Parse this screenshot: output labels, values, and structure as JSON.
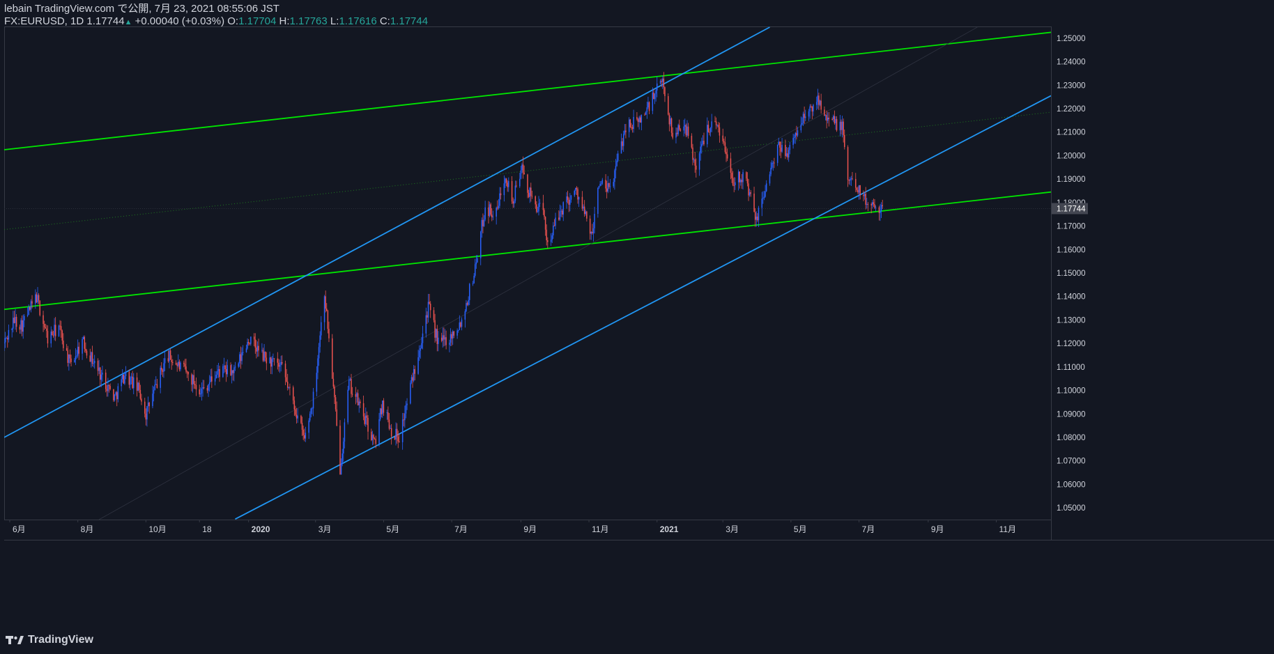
{
  "header": {
    "publish": "lebain TradingView.com で公開, 7月 23, 2021 08:55:06 JST",
    "symbol": "FX:EURUSD, 1D",
    "last": "1.17744",
    "change": "+0.00040 (+0.03%)",
    "o_label": "O:",
    "o": "1.17704",
    "h_label": "H:",
    "h": "1.17763",
    "l_label": "L:",
    "l": "1.17616",
    "c_label": "C:",
    "c": "1.17744"
  },
  "footer": {
    "brand": "TradingView"
  },
  "colors": {
    "background": "#131722",
    "up": "#2962ff",
    "down": "#ef5350",
    "green_line": "#00e600",
    "blue_line": "#2196f3",
    "axis_text": "#d1d4dc",
    "price_tag": "#434651"
  },
  "chart_data": {
    "type": "candlestick",
    "ylim": [
      1.045,
      1.255
    ],
    "y_ticks": [
      "1.05000",
      "1.06000",
      "1.07000",
      "1.08000",
      "1.09000",
      "1.10000",
      "1.11000",
      "1.12000",
      "1.13000",
      "1.14000",
      "1.15000",
      "1.16000",
      "1.17000",
      "1.18000",
      "1.19000",
      "1.20000",
      "1.21000",
      "1.22000",
      "1.23000",
      "1.24000",
      "1.25000"
    ],
    "last_price_label": "1.17744",
    "last_price": 1.17744,
    "x_ticks": [
      {
        "label": "6月",
        "date": "2019-06-01"
      },
      {
        "label": "8月",
        "date": "2019-08-01"
      },
      {
        "label": "10月",
        "date": "2019-10-01"
      },
      {
        "label": "18",
        "date": "2019-11-18"
      },
      {
        "label": "2020",
        "date": "2020-01-01"
      },
      {
        "label": "3月",
        "date": "2020-03-01"
      },
      {
        "label": "5月",
        "date": "2020-05-01"
      },
      {
        "label": "7月",
        "date": "2020-07-01"
      },
      {
        "label": "9月",
        "date": "2020-09-01"
      },
      {
        "label": "11月",
        "date": "2020-11-01"
      },
      {
        "label": "2021",
        "date": "2021-01-01"
      },
      {
        "label": "3月",
        "date": "2021-03-01"
      },
      {
        "label": "5月",
        "date": "2021-05-01"
      },
      {
        "label": "7月",
        "date": "2021-07-01"
      },
      {
        "label": "9月",
        "date": "2021-09-01"
      },
      {
        "label": "11月",
        "date": "2021-11-01"
      }
    ],
    "x_range": [
      "2019-05-27",
      "2021-12-20"
    ],
    "price_path": [
      [
        "2019-05-27",
        1.12
      ],
      [
        "2019-06-05",
        1.13
      ],
      [
        "2019-06-12",
        1.128
      ],
      [
        "2019-06-25",
        1.14
      ],
      [
        "2019-07-05",
        1.122
      ],
      [
        "2019-07-15",
        1.127
      ],
      [
        "2019-07-25",
        1.111
      ],
      [
        "2019-08-05",
        1.121
      ],
      [
        "2019-08-20",
        1.108
      ],
      [
        "2019-09-03",
        1.097
      ],
      [
        "2019-09-12",
        1.107
      ],
      [
        "2019-09-25",
        1.1
      ],
      [
        "2019-10-01",
        1.09
      ],
      [
        "2019-10-20",
        1.115
      ],
      [
        "2019-11-05",
        1.108
      ],
      [
        "2019-11-20",
        1.1
      ],
      [
        "2019-12-05",
        1.108
      ],
      [
        "2019-12-20",
        1.108
      ],
      [
        "2020-01-01",
        1.122
      ],
      [
        "2020-01-15",
        1.114
      ],
      [
        "2020-01-31",
        1.109
      ],
      [
        "2020-02-10",
        1.095
      ],
      [
        "2020-02-20",
        1.079
      ],
      [
        "2020-02-28",
        1.097
      ],
      [
        "2020-03-09",
        1.142
      ],
      [
        "2020-03-15",
        1.112
      ],
      [
        "2020-03-23",
        1.067
      ],
      [
        "2020-03-31",
        1.103
      ],
      [
        "2020-04-10",
        1.093
      ],
      [
        "2020-04-23",
        1.077
      ],
      [
        "2020-04-30",
        1.095
      ],
      [
        "2020-05-08",
        1.083
      ],
      [
        "2020-05-15",
        1.08
      ],
      [
        "2020-05-29",
        1.11
      ],
      [
        "2020-06-10",
        1.136
      ],
      [
        "2020-06-19",
        1.12
      ],
      [
        "2020-06-30",
        1.123
      ],
      [
        "2020-07-10",
        1.13
      ],
      [
        "2020-07-21",
        1.15
      ],
      [
        "2020-07-31",
        1.178
      ],
      [
        "2020-08-10",
        1.175
      ],
      [
        "2020-08-18",
        1.193
      ],
      [
        "2020-08-25",
        1.18
      ],
      [
        "2020-09-01",
        1.195
      ],
      [
        "2020-09-10",
        1.182
      ],
      [
        "2020-09-21",
        1.175
      ],
      [
        "2020-09-25",
        1.163
      ],
      [
        "2020-10-10",
        1.18
      ],
      [
        "2020-10-21",
        1.185
      ],
      [
        "2020-11-04",
        1.165
      ],
      [
        "2020-11-09",
        1.188
      ],
      [
        "2020-11-20",
        1.185
      ],
      [
        "2020-12-04",
        1.213
      ],
      [
        "2020-12-15",
        1.214
      ],
      [
        "2020-12-23",
        1.22
      ],
      [
        "2021-01-06",
        1.232
      ],
      [
        "2021-01-15",
        1.208
      ],
      [
        "2021-01-25",
        1.215
      ],
      [
        "2021-02-05",
        1.195
      ],
      [
        "2021-02-15",
        1.213
      ],
      [
        "2021-02-25",
        1.213
      ],
      [
        "2021-03-10",
        1.19
      ],
      [
        "2021-03-20",
        1.192
      ],
      [
        "2021-03-31",
        1.172
      ],
      [
        "2021-04-10",
        1.19
      ],
      [
        "2021-04-20",
        1.203
      ],
      [
        "2021-04-30",
        1.202
      ],
      [
        "2021-05-10",
        1.215
      ],
      [
        "2021-05-20",
        1.22
      ],
      [
        "2021-05-25",
        1.225
      ],
      [
        "2021-06-05",
        1.215
      ],
      [
        "2021-06-16",
        1.212
      ],
      [
        "2021-06-21",
        1.19
      ],
      [
        "2021-06-30",
        1.187
      ],
      [
        "2021-07-07",
        1.18
      ],
      [
        "2021-07-15",
        1.18
      ],
      [
        "2021-07-22",
        1.177
      ]
    ],
    "trendlines": [
      {
        "style": "solid",
        "color": "green",
        "points": [
          [
            "2019-05-27",
            1.2025
          ],
          [
            "2021-12-20",
            1.2525
          ]
        ]
      },
      {
        "style": "solid",
        "color": "green",
        "points": [
          [
            "2019-05-27",
            1.1345
          ],
          [
            "2021-12-20",
            1.1845
          ]
        ]
      },
      {
        "style": "dotted",
        "color": "green",
        "points": [
          [
            "2019-05-27",
            1.1685
          ],
          [
            "2021-12-20",
            1.2185
          ]
        ]
      },
      {
        "style": "solid",
        "color": "blue",
        "points": [
          [
            "2019-05-27",
            1.08
          ],
          [
            "2021-04-12",
            1.2547
          ]
        ]
      },
      {
        "style": "solid",
        "color": "blue",
        "points": [
          [
            "2019-12-20",
            1.0452
          ],
          [
            "2021-12-20",
            1.2255
          ]
        ]
      },
      {
        "style": "thin",
        "color": "gray",
        "points": [
          [
            "2019-08-20",
            1.045
          ],
          [
            "2021-10-15",
            1.2547
          ]
        ]
      }
    ]
  }
}
